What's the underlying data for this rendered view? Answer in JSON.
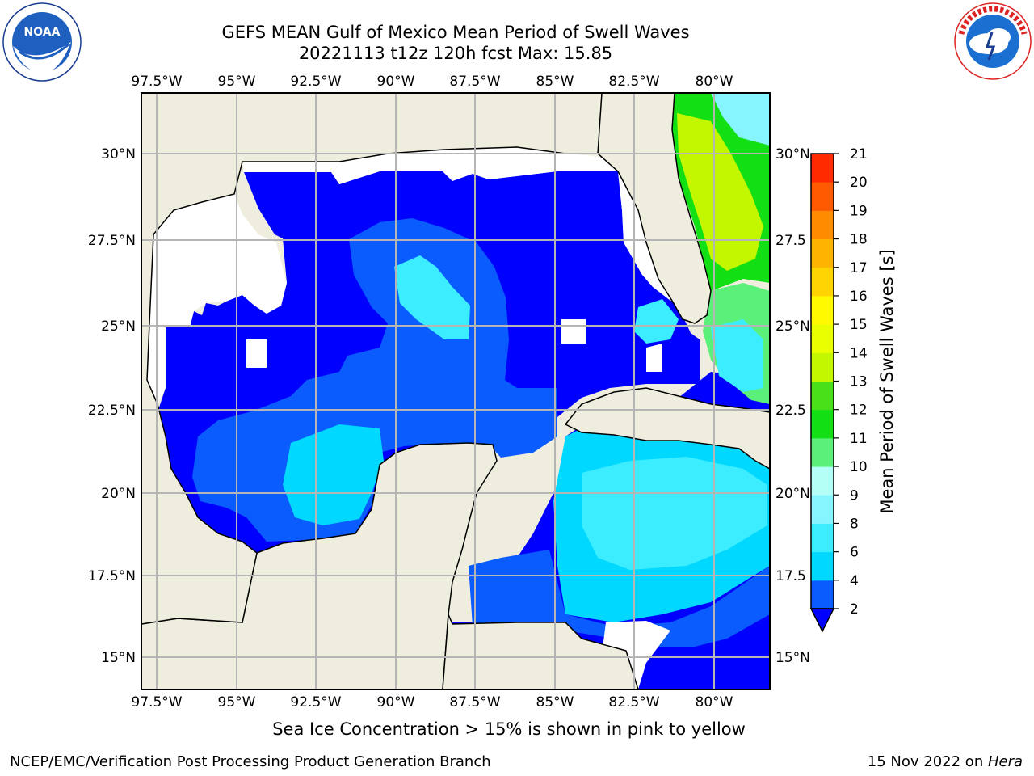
{
  "title": {
    "line1": "GEFS MEAN Gulf of Mexico Mean Period of Swell Waves",
    "line2": "20221113 t12z 120h fcst   Max: 15.85"
  },
  "axes": {
    "lon_labels": [
      "97.5°W",
      "95°W",
      "92.5°W",
      "90°W",
      "87.5°W",
      "85°W",
      "82.5°W",
      "80°W"
    ],
    "lat_labels_left": [
      "30°N",
      "27.5°N",
      "25°N",
      "22.5°N",
      "20°N",
      "17.5°N",
      "15°N"
    ],
    "lat_labels_right": [
      "30°N",
      "27.5",
      "25°N",
      "22.5",
      "20°N",
      "17.5",
      "15°N"
    ]
  },
  "colorbar": {
    "label": "Mean Period of Swell Waves [s]",
    "ticks": [
      "2",
      "4",
      "6",
      "8",
      "9",
      "10",
      "11",
      "12",
      "13",
      "14",
      "15",
      "16",
      "17",
      "18",
      "19",
      "20",
      "21"
    ],
    "colors": [
      "#0a5cff",
      "#00d8ff",
      "#3cecff",
      "#86f5ff",
      "#b4fff6",
      "#5af07a",
      "#13e014",
      "#4ae019",
      "#c3f700",
      "#eaff00",
      "#fffa00",
      "#ffd400",
      "#ffb400",
      "#ff8c00",
      "#ff5a00",
      "#ff2a00"
    ],
    "under_color": "#0000ff"
  },
  "caption": "Sea Ice Concentration > 15% is shown in pink to yellow",
  "footer": {
    "left": "NCEP/EMC/Verification Post Processing Product Generation Branch",
    "right_prefix": "15 Nov 2022 on ",
    "right_italic": "Hera"
  },
  "logos": {
    "noaa_text": "NOAA",
    "noaa_ring": "NATIONAL OCEANIC AND ATMOSPHERIC ADMINISTRATION",
    "nws_ring": "NATIONAL WEATHER SERVICE"
  }
}
